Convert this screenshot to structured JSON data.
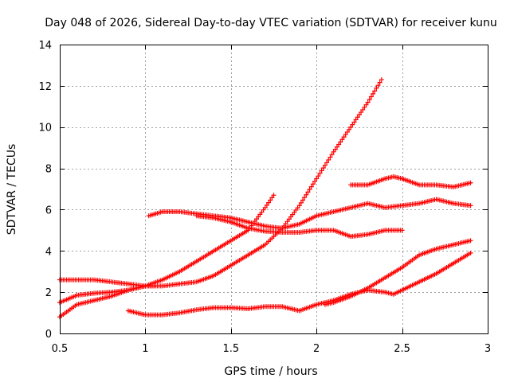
{
  "chart_data": {
    "type": "scatter",
    "title": "Day 048 of 2026, Sidereal Day-to-day VTEC variation (SDTVAR) for receiver kunu",
    "xlabel": "GPS time / hours",
    "ylabel": "SDTVAR / TECUs",
    "xlim": [
      0.5,
      3.0
    ],
    "ylim": [
      0,
      14
    ],
    "xticks": [
      0.5,
      1,
      1.5,
      2,
      2.5,
      3
    ],
    "xtick_labels": [
      "0.5",
      "1",
      "1.5",
      "2",
      "2.5",
      "3"
    ],
    "yticks": [
      0,
      2,
      4,
      6,
      8,
      10,
      12,
      14
    ],
    "ytick_labels": [
      "0",
      "2",
      "4",
      "6",
      "8",
      "10",
      "12",
      "14"
    ],
    "grid": true,
    "marker": "plus",
    "color": "#ff0000",
    "series": [
      {
        "name": "series-1",
        "x": [
          0.5,
          0.6,
          0.7,
          0.8,
          0.9,
          1.0,
          1.1,
          1.2,
          1.3,
          1.4,
          1.5,
          1.6,
          1.7,
          1.75
        ],
        "y": [
          1.5,
          1.85,
          1.95,
          2.0,
          2.1,
          2.3,
          2.6,
          3.0,
          3.5,
          4.0,
          4.5,
          5.0,
          6.1,
          6.7
        ]
      },
      {
        "name": "series-2",
        "x": [
          0.5,
          0.55,
          0.6,
          0.7,
          0.8,
          0.9,
          1.0,
          1.1,
          1.2,
          1.3,
          1.4,
          1.5,
          1.6,
          1.7,
          1.8,
          1.9,
          2.0,
          2.1,
          2.2,
          2.3,
          2.38
        ],
        "y": [
          0.8,
          1.1,
          1.4,
          1.6,
          1.8,
          2.1,
          2.3,
          2.3,
          2.4,
          2.5,
          2.8,
          3.3,
          3.8,
          4.3,
          5.1,
          6.2,
          7.5,
          8.8,
          10.0,
          11.2,
          12.3
        ]
      },
      {
        "name": "series-3",
        "x": [
          0.5,
          0.6,
          0.7,
          0.8,
          0.9,
          1.0,
          1.05
        ],
        "y": [
          2.6,
          2.6,
          2.6,
          2.5,
          2.4,
          2.3,
          2.3
        ]
      },
      {
        "name": "series-4",
        "x": [
          1.02,
          1.1,
          1.2,
          1.3,
          1.4,
          1.5,
          1.6,
          1.7,
          1.8,
          1.9,
          2.0,
          2.1,
          2.2,
          2.3,
          2.4,
          2.5,
          2.6,
          2.7,
          2.8,
          2.9
        ],
        "y": [
          5.7,
          5.9,
          5.9,
          5.8,
          5.7,
          5.6,
          5.4,
          5.2,
          5.1,
          5.3,
          5.7,
          5.9,
          6.1,
          6.3,
          6.1,
          6.2,
          6.3,
          6.5,
          6.3,
          6.2
        ]
      },
      {
        "name": "series-5",
        "x": [
          1.3,
          1.4,
          1.5,
          1.6,
          1.7,
          1.8,
          1.9,
          2.0,
          2.1,
          2.2,
          2.3,
          2.4,
          2.5
        ],
        "y": [
          5.7,
          5.6,
          5.4,
          5.1,
          4.95,
          4.9,
          4.9,
          5.0,
          5.0,
          4.7,
          4.8,
          5.0,
          5.0
        ]
      },
      {
        "name": "series-6",
        "x": [
          0.9,
          1.0,
          1.1,
          1.2,
          1.3,
          1.4,
          1.5,
          1.6,
          1.7,
          1.8,
          1.9,
          2.0,
          2.05,
          2.1,
          2.2,
          2.3,
          2.4,
          2.45,
          2.5,
          2.6,
          2.7,
          2.8,
          2.9
        ],
        "y": [
          1.1,
          0.9,
          0.9,
          1.0,
          1.15,
          1.25,
          1.25,
          1.2,
          1.3,
          1.3,
          1.1,
          1.4,
          1.5,
          1.6,
          1.9,
          2.1,
          2.0,
          1.9,
          2.1,
          2.5,
          2.9,
          3.4,
          3.9
        ]
      },
      {
        "name": "series-7",
        "x": [
          2.05,
          2.1,
          2.2,
          2.3,
          2.4,
          2.5,
          2.6,
          2.7,
          2.8,
          2.9
        ],
        "y": [
          1.4,
          1.5,
          1.8,
          2.2,
          2.7,
          3.2,
          3.8,
          4.1,
          4.3,
          4.5
        ]
      },
      {
        "name": "series-8",
        "x": [
          2.2,
          2.3,
          2.4,
          2.45,
          2.5,
          2.6,
          2.7,
          2.8,
          2.9
        ],
        "y": [
          7.2,
          7.2,
          7.5,
          7.6,
          7.5,
          7.2,
          7.2,
          7.1,
          7.3
        ]
      }
    ]
  }
}
